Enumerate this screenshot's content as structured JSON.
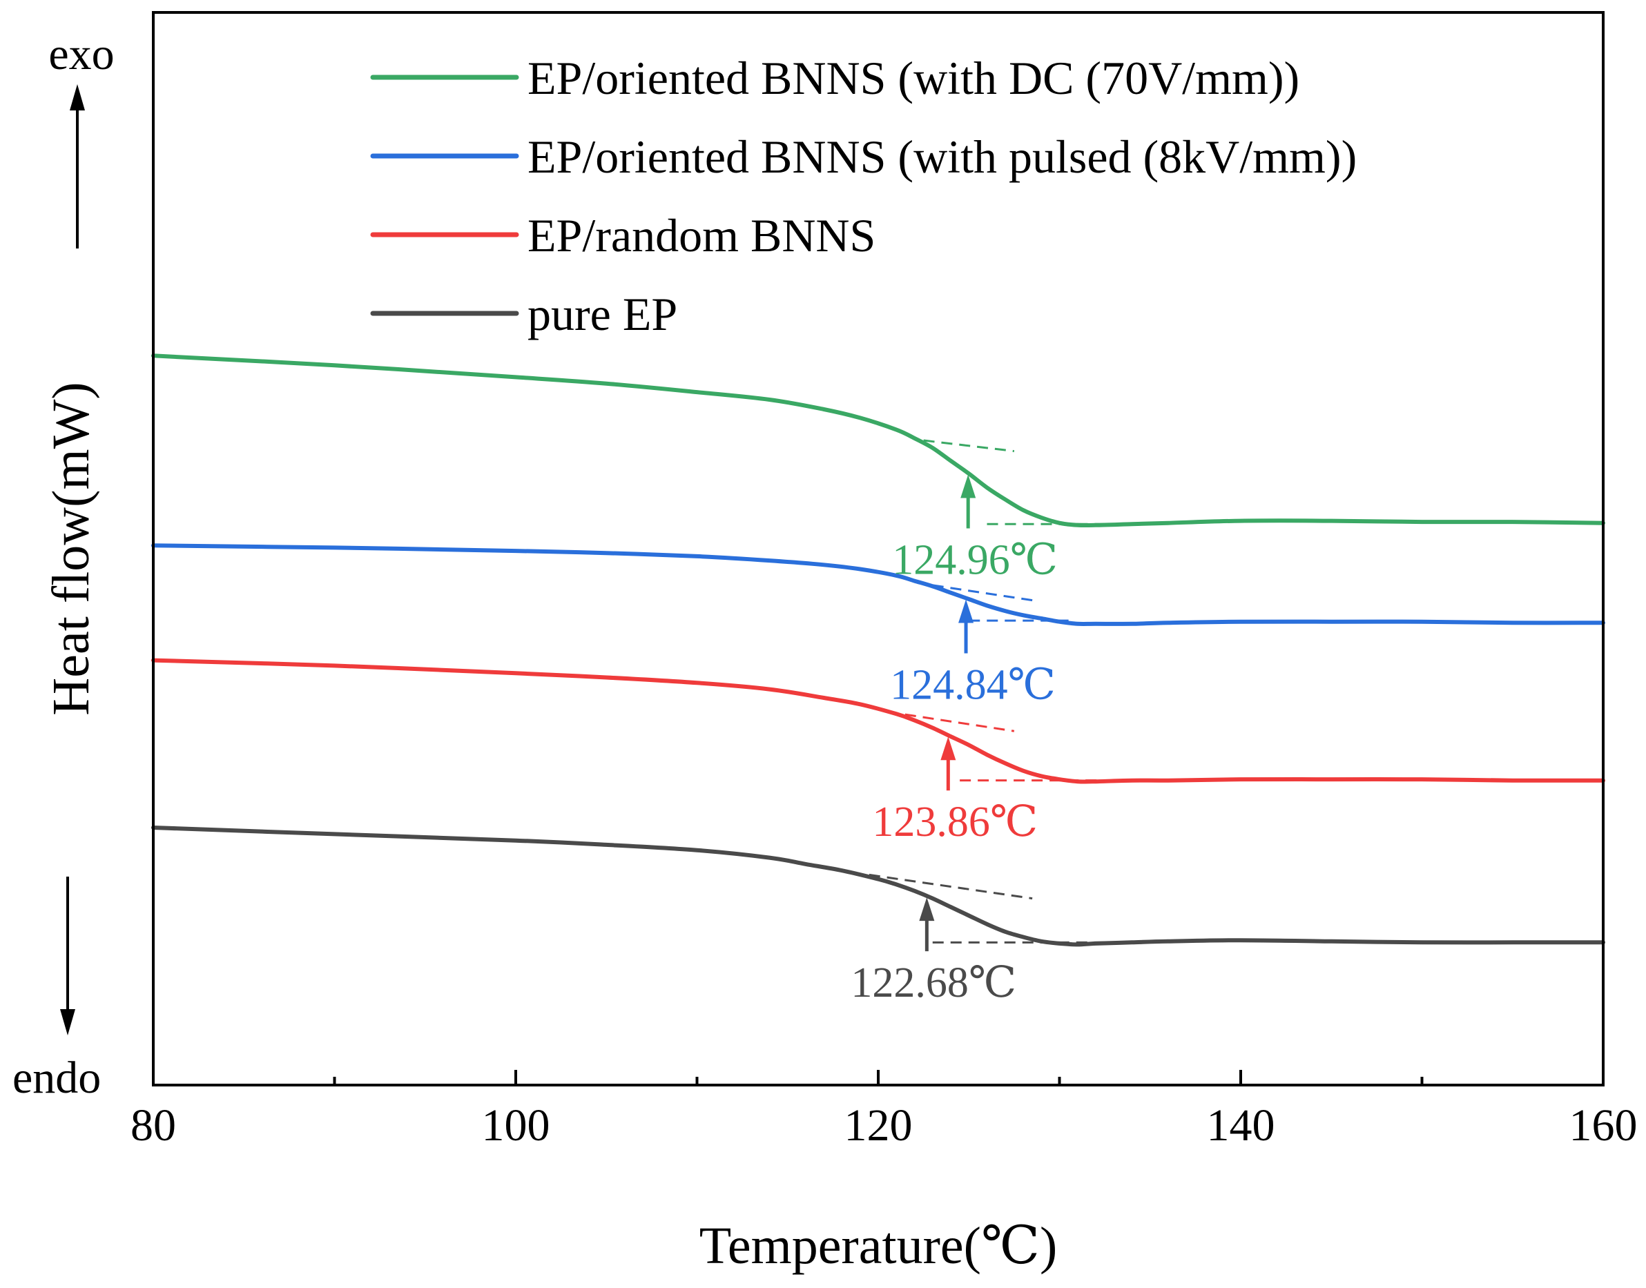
{
  "chart_data": {
    "type": "line",
    "title": "",
    "xlabel": "Temperature(℃)",
    "ylabel": "Heat flow(mW)",
    "xlim": [
      80,
      160
    ],
    "ylim": [
      0,
      100
    ],
    "x_ticks": [
      80,
      100,
      120,
      140,
      160
    ],
    "x_tick_labels": [
      "80",
      "100",
      "120",
      "140",
      "160"
    ],
    "x_minor_ticks": [
      90,
      110,
      130,
      150
    ],
    "y_ticks_shown": false,
    "legend_position": "top",
    "exo_label": "exo",
    "endo_label": "endo",
    "series": [
      {
        "name": "EP/oriented BNNS (with DC (70V/mm))",
        "color": "#3aa864",
        "x": [
          80,
          90,
          100,
          105,
          110,
          114,
          117,
          119,
          121,
          122,
          123,
          124,
          125,
          126,
          127,
          128,
          129,
          130,
          131,
          132,
          134,
          136,
          140,
          145,
          150,
          155,
          160
        ],
        "y": [
          68.0,
          67.1,
          66.0,
          65.4,
          64.6,
          63.9,
          63.0,
          62.2,
          61.1,
          60.3,
          59.4,
          58.2,
          57.0,
          55.7,
          54.6,
          53.6,
          52.9,
          52.4,
          52.2,
          52.2,
          52.3,
          52.4,
          52.6,
          52.6,
          52.5,
          52.5,
          52.4
        ],
        "tg": 124.96,
        "tg_label": "124.96℃",
        "tangent_upper": [
          [
            122.5,
            60.1
          ],
          [
            127.5,
            59.1
          ]
        ],
        "tangent_lower": [
          [
            126.0,
            52.3
          ],
          [
            132.5,
            52.3
          ]
        ]
      },
      {
        "name": "EP/oriented BNNS (with pulsed (8kV/mm))",
        "color": "#2a6fdb",
        "x": [
          80,
          90,
          100,
          105,
          110,
          114,
          117,
          119,
          121,
          122,
          123,
          124,
          125,
          126,
          127,
          128,
          129,
          130,
          131,
          132,
          134,
          136,
          140,
          145,
          150,
          155,
          160
        ],
        "y": [
          50.3,
          50.1,
          49.8,
          49.6,
          49.3,
          48.9,
          48.5,
          48.1,
          47.5,
          47.0,
          46.5,
          45.9,
          45.3,
          44.7,
          44.2,
          43.8,
          43.5,
          43.2,
          43.0,
          43.0,
          43.0,
          43.1,
          43.2,
          43.2,
          43.2,
          43.1,
          43.1
        ],
        "tg": 124.84,
        "tg_label": "124.84℃",
        "tangent_upper": [
          [
            123.0,
            46.6
          ],
          [
            128.5,
            45.2
          ]
        ],
        "tangent_lower": [
          [
            125.0,
            43.3
          ],
          [
            130.5,
            43.3
          ]
        ]
      },
      {
        "name": "EP/random BNNS",
        "color": "#ef3b3b",
        "x": [
          80,
          90,
          100,
          105,
          110,
          114,
          117,
          119,
          121,
          122,
          123,
          124,
          125,
          126,
          127,
          128,
          129,
          130,
          131,
          132,
          134,
          136,
          140,
          145,
          150,
          155,
          160
        ],
        "y": [
          39.6,
          39.1,
          38.4,
          38.0,
          37.5,
          36.9,
          36.1,
          35.5,
          34.6,
          34.0,
          33.3,
          32.5,
          31.7,
          30.8,
          30.0,
          29.3,
          28.8,
          28.5,
          28.3,
          28.3,
          28.4,
          28.4,
          28.5,
          28.5,
          28.5,
          28.4,
          28.4
        ],
        "tg": 123.86,
        "tg_label": "123.86℃",
        "tangent_upper": [
          [
            120.5,
            34.8
          ],
          [
            127.5,
            33.0
          ]
        ],
        "tangent_lower": [
          [
            124.5,
            28.4
          ],
          [
            133.5,
            28.4
          ]
        ]
      },
      {
        "name": "pure EP",
        "color": "#4a4a4a",
        "x": [
          80,
          90,
          100,
          105,
          110,
          114,
          116,
          118,
          120,
          121,
          122,
          123,
          124,
          125,
          126,
          127,
          128,
          129,
          130,
          131,
          132,
          134,
          136,
          140,
          145,
          150,
          155,
          160
        ],
        "y": [
          24.0,
          23.4,
          22.8,
          22.4,
          21.9,
          21.2,
          20.6,
          20.0,
          19.2,
          18.7,
          18.1,
          17.4,
          16.6,
          15.8,
          15.0,
          14.3,
          13.8,
          13.4,
          13.2,
          13.1,
          13.2,
          13.3,
          13.4,
          13.5,
          13.4,
          13.3,
          13.3,
          13.3
        ],
        "tg": 122.68,
        "tg_label": "122.68℃",
        "tangent_upper": [
          [
            119.5,
            19.6
          ],
          [
            128.5,
            17.4
          ]
        ],
        "tangent_lower": [
          [
            123.0,
            13.3
          ],
          [
            132.5,
            13.3
          ]
        ]
      }
    ]
  }
}
